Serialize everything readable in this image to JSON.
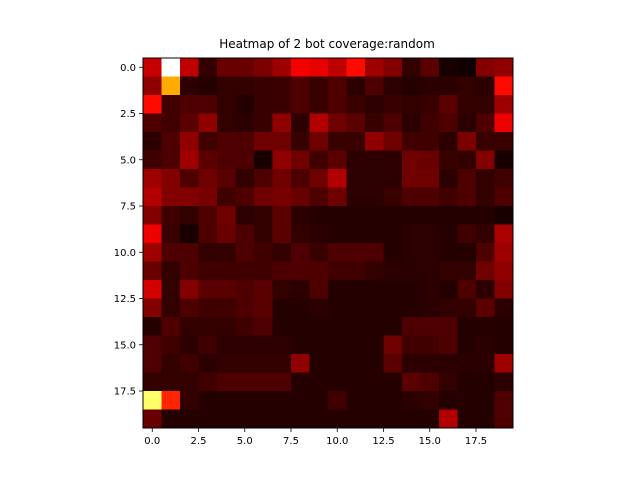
{
  "chart_data": {
    "type": "heatmap",
    "title": "Heatmap of 2 bot coverage:random",
    "xlabel": "",
    "ylabel": "",
    "colormap": "hot",
    "grid": false,
    "xlim": [
      -0.5,
      19.5
    ],
    "ylim": [
      19.5,
      -0.5
    ],
    "x_ticks": [
      0,
      2.5,
      5,
      7.5,
      10,
      12.5,
      15,
      17.5
    ],
    "x_tick_labels": [
      "0.0",
      "2.5",
      "5.0",
      "7.5",
      "10.0",
      "12.5",
      "15.0",
      "17.5"
    ],
    "y_ticks": [
      0,
      2.5,
      5,
      7.5,
      10,
      12.5,
      15,
      17.5
    ],
    "y_tick_labels": [
      "0.0",
      "2.5",
      "5.0",
      "7.5",
      "10.0",
      "12.5",
      "15.0",
      "17.5"
    ],
    "values": [
      [
        0.28,
        1.0,
        0.27,
        0.06,
        0.14,
        0.14,
        0.17,
        0.22,
        0.35,
        0.33,
        0.27,
        0.38,
        0.22,
        0.18,
        0.06,
        0.12,
        0.02,
        0.01,
        0.18,
        0.2
      ],
      [
        0.2,
        0.62,
        0.05,
        0.04,
        0.06,
        0.06,
        0.07,
        0.07,
        0.1,
        0.07,
        0.1,
        0.05,
        0.1,
        0.05,
        0.04,
        0.05,
        0.05,
        0.06,
        0.05,
        0.38
      ],
      [
        0.38,
        0.08,
        0.1,
        0.1,
        0.06,
        0.04,
        0.07,
        0.07,
        0.1,
        0.07,
        0.1,
        0.07,
        0.05,
        0.07,
        0.06,
        0.07,
        0.12,
        0.06,
        0.06,
        0.22
      ],
      [
        0.1,
        0.08,
        0.12,
        0.2,
        0.06,
        0.05,
        0.07,
        0.2,
        0.05,
        0.25,
        0.15,
        0.12,
        0.07,
        0.1,
        0.05,
        0.08,
        0.1,
        0.05,
        0.1,
        0.34
      ],
      [
        0.05,
        0.1,
        0.2,
        0.08,
        0.1,
        0.1,
        0.15,
        0.15,
        0.07,
        0.15,
        0.07,
        0.07,
        0.2,
        0.15,
        0.08,
        0.08,
        0.05,
        0.17,
        0.07,
        0.07
      ],
      [
        0.08,
        0.1,
        0.22,
        0.12,
        0.1,
        0.1,
        0.02,
        0.2,
        0.15,
        0.08,
        0.12,
        0.05,
        0.05,
        0.05,
        0.15,
        0.14,
        0.07,
        0.06,
        0.18,
        0.02
      ],
      [
        0.22,
        0.18,
        0.1,
        0.15,
        0.12,
        0.06,
        0.1,
        0.15,
        0.1,
        0.15,
        0.25,
        0.05,
        0.05,
        0.05,
        0.15,
        0.15,
        0.05,
        0.1,
        0.06,
        0.08
      ],
      [
        0.25,
        0.18,
        0.18,
        0.16,
        0.08,
        0.1,
        0.15,
        0.16,
        0.14,
        0.1,
        0.15,
        0.05,
        0.05,
        0.07,
        0.1,
        0.1,
        0.08,
        0.1,
        0.06,
        0.1
      ],
      [
        0.18,
        0.08,
        0.06,
        0.1,
        0.15,
        0.05,
        0.06,
        0.12,
        0.05,
        0.04,
        0.04,
        0.04,
        0.04,
        0.04,
        0.04,
        0.04,
        0.04,
        0.04,
        0.04,
        0.02
      ],
      [
        0.34,
        0.07,
        0.02,
        0.1,
        0.14,
        0.1,
        0.06,
        0.12,
        0.06,
        0.05,
        0.04,
        0.04,
        0.04,
        0.04,
        0.05,
        0.05,
        0.04,
        0.08,
        0.06,
        0.24
      ],
      [
        0.22,
        0.1,
        0.1,
        0.06,
        0.06,
        0.1,
        0.08,
        0.06,
        0.1,
        0.07,
        0.1,
        0.1,
        0.1,
        0.04,
        0.05,
        0.05,
        0.04,
        0.04,
        0.1,
        0.22
      ],
      [
        0.14,
        0.06,
        0.1,
        0.08,
        0.08,
        0.08,
        0.08,
        0.1,
        0.1,
        0.1,
        0.08,
        0.08,
        0.06,
        0.05,
        0.05,
        0.05,
        0.06,
        0.06,
        0.15,
        0.2
      ],
      [
        0.3,
        0.06,
        0.18,
        0.12,
        0.12,
        0.1,
        0.12,
        0.06,
        0.05,
        0.1,
        0.04,
        0.04,
        0.04,
        0.04,
        0.04,
        0.05,
        0.04,
        0.1,
        0.05,
        0.18
      ],
      [
        0.18,
        0.06,
        0.1,
        0.08,
        0.08,
        0.1,
        0.12,
        0.04,
        0.04,
        0.05,
        0.04,
        0.04,
        0.04,
        0.04,
        0.04,
        0.05,
        0.06,
        0.06,
        0.12,
        0.05
      ],
      [
        0.04,
        0.1,
        0.06,
        0.06,
        0.06,
        0.08,
        0.1,
        0.04,
        0.04,
        0.04,
        0.04,
        0.04,
        0.04,
        0.04,
        0.1,
        0.1,
        0.1,
        0.04,
        0.04,
        0.04
      ],
      [
        0.1,
        0.08,
        0.05,
        0.08,
        0.05,
        0.05,
        0.05,
        0.05,
        0.04,
        0.04,
        0.04,
        0.04,
        0.04,
        0.15,
        0.08,
        0.08,
        0.1,
        0.04,
        0.05,
        0.04
      ],
      [
        0.1,
        0.06,
        0.08,
        0.05,
        0.06,
        0.06,
        0.06,
        0.06,
        0.2,
        0.04,
        0.04,
        0.04,
        0.04,
        0.12,
        0.05,
        0.05,
        0.05,
        0.05,
        0.05,
        0.22
      ],
      [
        0.06,
        0.06,
        0.06,
        0.08,
        0.1,
        0.1,
        0.1,
        0.1,
        0.04,
        0.04,
        0.04,
        0.04,
        0.04,
        0.04,
        0.12,
        0.1,
        0.06,
        0.04,
        0.04,
        0.05
      ],
      [
        0.85,
        0.42,
        0.06,
        0.04,
        0.04,
        0.04,
        0.04,
        0.04,
        0.04,
        0.04,
        0.08,
        0.04,
        0.04,
        0.04,
        0.05,
        0.06,
        0.04,
        0.04,
        0.04,
        0.1
      ],
      [
        0.14,
        0.04,
        0.04,
        0.04,
        0.04,
        0.04,
        0.04,
        0.04,
        0.04,
        0.04,
        0.04,
        0.04,
        0.04,
        0.04,
        0.04,
        0.04,
        0.25,
        0.04,
        0.04,
        0.1
      ]
    ]
  }
}
